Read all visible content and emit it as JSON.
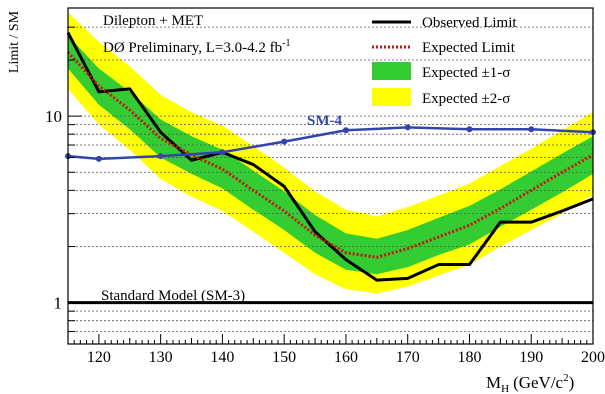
{
  "chart_data": {
    "type": "line",
    "title": "",
    "xlabel": "M",
    "xlabel_sub": "H",
    "xlabel_units": "(GeV/c",
    "xlabel_units_sup": "2",
    "xlabel_close": ")",
    "ylabel": "Limit / SM",
    "xlim": [
      115,
      200
    ],
    "ylim": [
      0.6,
      38
    ],
    "yscale": "log",
    "xticks": [
      120,
      130,
      140,
      150,
      160,
      170,
      180,
      190,
      200
    ],
    "yticks": [
      1,
      10
    ],
    "grid": "horizontal",
    "annotations": {
      "line1": "Dilepton + MET",
      "line2": "DØ Preliminary, L=3.0-4.2 fb",
      "line2_sup": "-1",
      "sm4_label": "SM-4",
      "sm3_label": "Standard Model (SM-3)"
    },
    "legend_position": "top-right",
    "legend": [
      {
        "label": "Observed Limit",
        "style": "solid",
        "color": "#000000"
      },
      {
        "label": "Expected Limit",
        "style": "dotted",
        "color": "#cc1111"
      },
      {
        "label": "Expected ±1-σ",
        "style": "band",
        "color": "#33cc33"
      },
      {
        "label": "Expected ±2-σ",
        "style": "band",
        "color": "#ffff00"
      }
    ],
    "x": [
      115,
      120,
      125,
      130,
      135,
      140,
      145,
      150,
      155,
      160,
      165,
      170,
      175,
      180,
      185,
      190,
      195,
      200
    ],
    "series": [
      {
        "name": "Observed Limit",
        "color": "#000000",
        "values": [
          28,
          13.5,
          14,
          8.2,
          5.8,
          6.4,
          5.5,
          4.2,
          2.4,
          1.7,
          1.32,
          1.35,
          1.6,
          1.6,
          2.7,
          2.7,
          3.1,
          3.6
        ]
      },
      {
        "name": "Expected Limit",
        "color": "#cc1111",
        "values": [
          22,
          14.5,
          10.8,
          7.6,
          6.2,
          5.2,
          4.0,
          3.1,
          2.3,
          1.85,
          1.75,
          1.95,
          2.25,
          2.6,
          3.2,
          4.0,
          5.0,
          6.2
        ]
      },
      {
        "name": "SM-4",
        "color": "#3344aa",
        "x": [
          115,
          120,
          130,
          140,
          150,
          160,
          170,
          180,
          190,
          200
        ],
        "values": [
          6.1,
          5.9,
          6.1,
          6.4,
          7.3,
          8.4,
          8.7,
          8.5,
          8.5,
          8.2
        ]
      },
      {
        "name": "Standard Model (SM-3)",
        "color": "#000000",
        "x": [
          115,
          200
        ],
        "values": [
          1,
          1
        ]
      }
    ],
    "bands": {
      "sigma1": {
        "lower": [
          18,
          11.5,
          8.5,
          6.0,
          4.9,
          4.1,
          3.15,
          2.45,
          1.85,
          1.5,
          1.42,
          1.55,
          1.8,
          2.05,
          2.55,
          3.15,
          3.9,
          4.9
        ],
        "upper": [
          27,
          18,
          13.5,
          9.6,
          7.8,
          6.6,
          5.1,
          3.95,
          2.95,
          2.35,
          2.2,
          2.45,
          2.85,
          3.3,
          4.05,
          5.05,
          6.3,
          7.8
        ]
      },
      "sigma2": {
        "lower": [
          14,
          9.0,
          6.6,
          4.6,
          3.7,
          3.1,
          2.4,
          1.85,
          1.42,
          1.18,
          1.12,
          1.22,
          1.4,
          1.6,
          2.0,
          2.45,
          3.0,
          3.8
        ],
        "upper": [
          36,
          25,
          18.5,
          13,
          10.5,
          8.9,
          6.9,
          5.3,
          3.95,
          3.15,
          2.9,
          3.25,
          3.75,
          4.35,
          5.4,
          6.7,
          8.4,
          10.5
        ]
      }
    }
  }
}
